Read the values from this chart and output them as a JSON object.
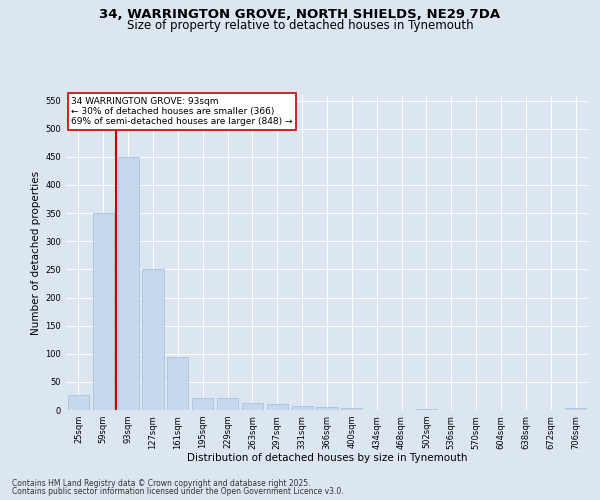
{
  "title1": "34, WARRINGTON GROVE, NORTH SHIELDS, NE29 7DA",
  "title2": "Size of property relative to detached houses in Tynemouth",
  "xlabel": "Distribution of detached houses by size in Tynemouth",
  "ylabel": "Number of detached properties",
  "categories": [
    "25sqm",
    "59sqm",
    "93sqm",
    "127sqm",
    "161sqm",
    "195sqm",
    "229sqm",
    "263sqm",
    "297sqm",
    "331sqm",
    "366sqm",
    "400sqm",
    "434sqm",
    "468sqm",
    "502sqm",
    "536sqm",
    "570sqm",
    "604sqm",
    "638sqm",
    "672sqm",
    "706sqm"
  ],
  "values": [
    27,
    350,
    450,
    250,
    95,
    22,
    22,
    12,
    10,
    8,
    5,
    4,
    0,
    0,
    1,
    0,
    0,
    0,
    0,
    0,
    4
  ],
  "bar_color": "#c5d8ec",
  "bar_edgecolor": "#a0bcd8",
  "vline_x": 1.5,
  "vline_color": "#cc0000",
  "annotation_text": "34 WARRINGTON GROVE: 93sqm\n← 30% of detached houses are smaller (366)\n69% of semi-detached houses are larger (848) →",
  "annotation_box_edgecolor": "#cc0000",
  "annotation_box_facecolor": "#ffffff",
  "ylim": [
    0,
    560
  ],
  "yticks": [
    0,
    50,
    100,
    150,
    200,
    250,
    300,
    350,
    400,
    450,
    500,
    550
  ],
  "background_color": "#dce6f1",
  "plot_background": "#dce6f1",
  "footer1": "Contains HM Land Registry data © Crown copyright and database right 2025.",
  "footer2": "Contains public sector information licensed under the Open Government Licence v3.0.",
  "title1_fontsize": 9.5,
  "title2_fontsize": 8.5,
  "annotation_fontsize": 6.5,
  "xlabel_fontsize": 7.5,
  "ylabel_fontsize": 7.5,
  "tick_fontsize": 6,
  "footer_fontsize": 5.5
}
